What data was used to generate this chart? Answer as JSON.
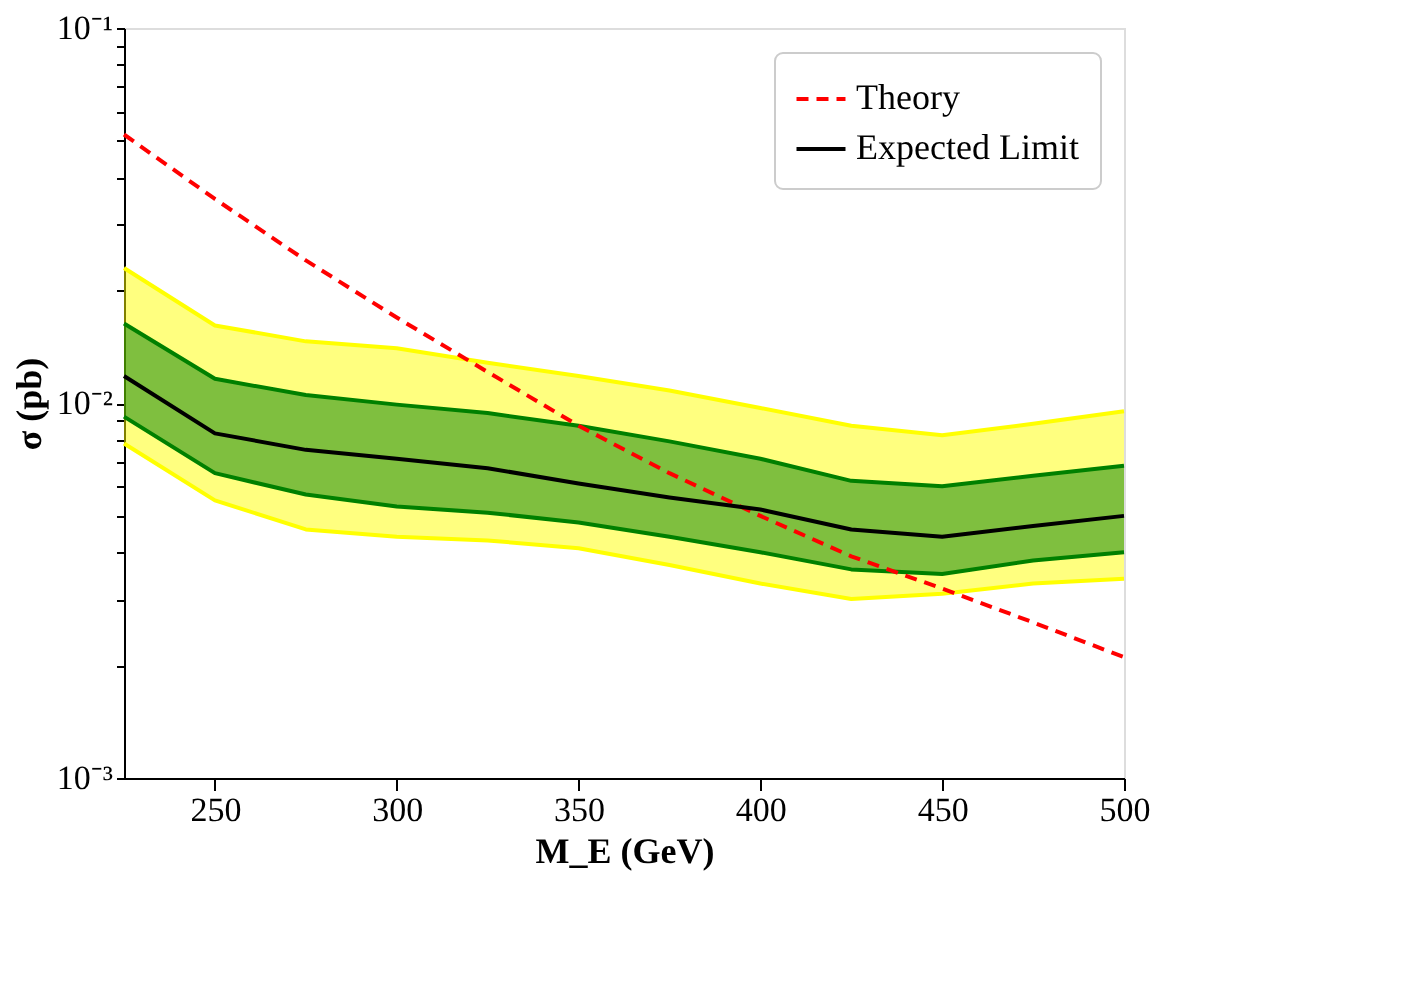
{
  "chart_data": {
    "type": "line",
    "xlabel": "M_E (GeV)",
    "ylabel": "σ (pb)",
    "log": "y",
    "grid": false,
    "legend": "top right",
    "x": [
      225,
      250,
      275,
      300,
      325,
      350,
      375,
      400,
      425,
      450,
      475,
      500
    ],
    "xlim": [
      225,
      500
    ],
    "xticks": [
      250,
      300,
      350,
      400,
      450,
      500
    ],
    "ylim": [
      0.001,
      0.1
    ],
    "yticks": [
      {
        "value": 0.001,
        "label": "10⁻³"
      },
      {
        "value": 0.002,
        "label": null
      },
      {
        "value": 0.003,
        "label": null
      },
      {
        "value": 0.004,
        "label": null
      },
      {
        "value": 0.005,
        "label": null
      },
      {
        "value": 0.006,
        "label": null
      },
      {
        "value": 0.007,
        "label": null
      },
      {
        "value": 0.008,
        "label": null
      },
      {
        "value": 0.009,
        "label": null
      },
      {
        "value": 0.01,
        "label": "10⁻²"
      },
      {
        "value": 0.02,
        "label": null
      },
      {
        "value": 0.03,
        "label": null
      },
      {
        "value": 0.04,
        "label": null
      },
      {
        "value": 0.05,
        "label": null
      },
      {
        "value": 0.06,
        "label": null
      },
      {
        "value": 0.07,
        "label": null
      },
      {
        "value": 0.08,
        "label": null
      },
      {
        "value": 0.09,
        "label": null
      },
      {
        "value": 0.1,
        "label": "10⁻¹"
      }
    ],
    "series": [
      {
        "color": "#ffff00",
        "values": [
          0.0229,
          0.0161,
          0.0146,
          0.014,
          0.0128,
          0.0118,
          0.0108,
          0.0097,
          0.0087,
          0.0082,
          0.0088,
          0.0095
        ],
        "lower": [
          0.0078,
          0.0055,
          0.0046,
          0.0044,
          0.0043,
          0.0041,
          0.0037,
          0.0033,
          0.003,
          0.0031,
          0.0033,
          0.0034
        ],
        "upper": [
          0.0229,
          0.0161,
          0.0146,
          0.014,
          0.0128,
          0.0118,
          0.0108,
          0.0097,
          0.0087,
          0.0082,
          0.0088,
          0.0095
        ]
      },
      {
        "color": "#ffff00",
        "values": [
          0.0078,
          0.0055,
          0.0046,
          0.0044,
          0.0043,
          0.0041,
          0.0037,
          0.0033,
          0.003,
          0.0031,
          0.0033,
          0.0034
        ]
      },
      {
        "color": "#008000",
        "values": [
          0.0163,
          0.0116,
          0.0105,
          0.0099,
          0.0094,
          0.0087,
          0.0079,
          0.0071,
          0.0062,
          0.006,
          0.0064,
          0.0068
        ],
        "lower": [
          0.0092,
          0.0065,
          0.0057,
          0.0053,
          0.0051,
          0.0048,
          0.0044,
          0.004,
          0.0036,
          0.0035,
          0.0038,
          0.004
        ],
        "upper": [
          0.0163,
          0.0116,
          0.0105,
          0.0099,
          0.0094,
          0.0087,
          0.0079,
          0.0071,
          0.0062,
          0.006,
          0.0064,
          0.0068
        ]
      },
      {
        "color": "#008000",
        "values": [
          0.0092,
          0.0065,
          0.0057,
          0.0053,
          0.0051,
          0.0048,
          0.0044,
          0.004,
          0.0036,
          0.0035,
          0.0038,
          0.004
        ]
      },
      {
        "name": "Theory",
        "color": "#ff0000",
        "line_style": "dashed",
        "values": [
          0.052,
          0.035,
          0.024,
          0.0169,
          0.0121,
          0.0087,
          0.0065,
          0.005,
          0.0039,
          0.0032,
          0.0026,
          0.0021
        ]
      },
      {
        "name": "Expected Limit",
        "color": "#000000",
        "line_style": "solid",
        "values": [
          0.0118,
          0.0083,
          0.0075,
          0.0071,
          0.0067,
          0.0061,
          0.0056,
          0.0052,
          0.0046,
          0.0044,
          0.0047,
          0.005
        ]
      }
    ]
  }
}
